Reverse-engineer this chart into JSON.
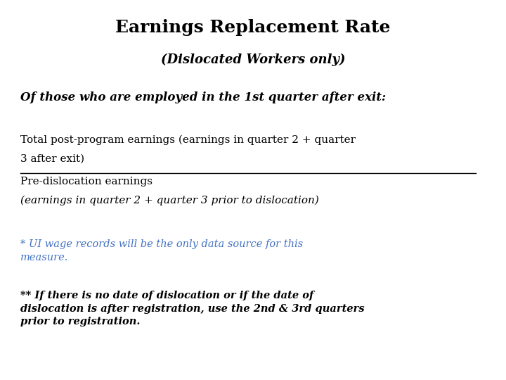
{
  "title": "Earnings Replacement Rate",
  "subtitle": "(Dislocated Workers only)",
  "line1": "Of those who are employed in the 1st quarter after exit:",
  "numerator_line1": "Total post-program earnings (earnings in quarter 2 + quarter",
  "numerator_line2": "3 after exit)",
  "denominator_line1": "Pre-dislocation earnings",
  "denominator_line2": "(earnings in quarter 2 + quarter 3 prior to dislocation)",
  "footnote1": "* UI wage records will be the only data source for this\nmeasure.",
  "footnote2": "** If there is no date of dislocation or if the date of\ndislocation is after registration, use the 2nd & 3rd quarters\nprior to registration.",
  "background_color": "#ffffff",
  "text_color": "#000000",
  "footnote1_color": "#4472C4",
  "title_fontsize": 18,
  "subtitle_fontsize": 13,
  "line1_fontsize": 12,
  "body_fontsize": 11,
  "footnote_fontsize": 10.5
}
